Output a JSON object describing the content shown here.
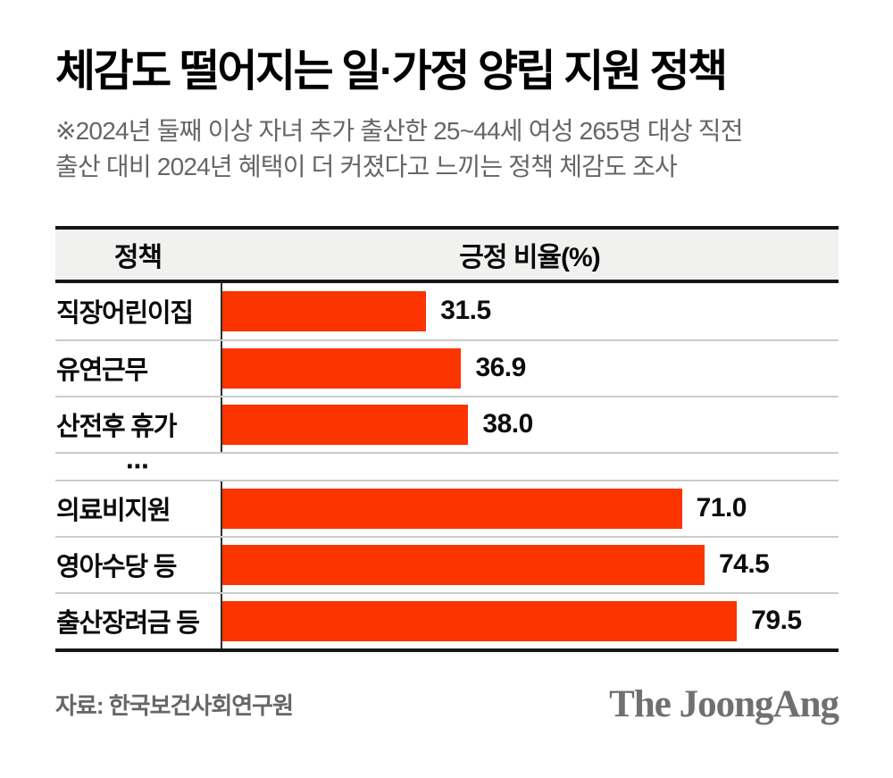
{
  "header": {
    "title": "체감도 떨어지는 일·가정 양립 지원 정책",
    "note_lines": [
      "※2024년 둘째 이상 자녀 추가 출산한 25~44세 여성 265명 대상 직전",
      "출산 대비 2024년 혜택이 더 커졌다고 느끼는 정책 체감도 조사"
    ]
  },
  "table": {
    "col1_header": "정책",
    "col2_header": "긍정 비율(%)",
    "ellipsis": "⋯",
    "groups": [
      {
        "rows": [
          {
            "label": "직장어린이집",
            "value": 31.5,
            "display": "31.5"
          },
          {
            "label": "유연근무",
            "value": 36.9,
            "display": "36.9"
          },
          {
            "label": "산전후 휴가",
            "value": 38.0,
            "display": "38.0"
          }
        ]
      },
      {
        "rows": [
          {
            "label": "의료비지원",
            "value": 71.0,
            "display": "71.0"
          },
          {
            "label": "영아수당 등",
            "value": 74.5,
            "display": "74.5"
          },
          {
            "label": "출산장려금 등",
            "value": 79.5,
            "display": "79.5"
          }
        ]
      }
    ]
  },
  "footer": {
    "source": "자료: 한국보건사회연구원",
    "logo": "The JoongAng"
  },
  "colors": {
    "bar": "#fb3400",
    "header_bg": "#f1f1ef",
    "thick_border": "#161616",
    "thin_separator": "#cbcbcb",
    "note_gray": "#666666",
    "logo_gray": "#707070"
  },
  "chart_data": {
    "type": "bar",
    "orientation": "horizontal",
    "title": "체감도 떨어지는 일·가정 양립 지원 정책",
    "note": "※2024년 둘째 이상 자녀 추가 출산한 25~44세 여성 265명 대상 직전 출산 대비 2024년 혜택이 더 커졌다고 느끼는 정책 체감도 조사",
    "value_label": "긍정 비율(%)",
    "category_label": "정책",
    "categories": [
      "직장어린이집",
      "유연근무",
      "산전후 휴가",
      "의료비지원",
      "영아수당 등",
      "출산장려금 등"
    ],
    "values": [
      31.5,
      36.9,
      38.0,
      71.0,
      74.5,
      79.5
    ],
    "omitted_middle_categories": true,
    "xlim": [
      0,
      95.2
    ],
    "grid": false,
    "legend": false,
    "source": "한국보건사회연구원"
  }
}
